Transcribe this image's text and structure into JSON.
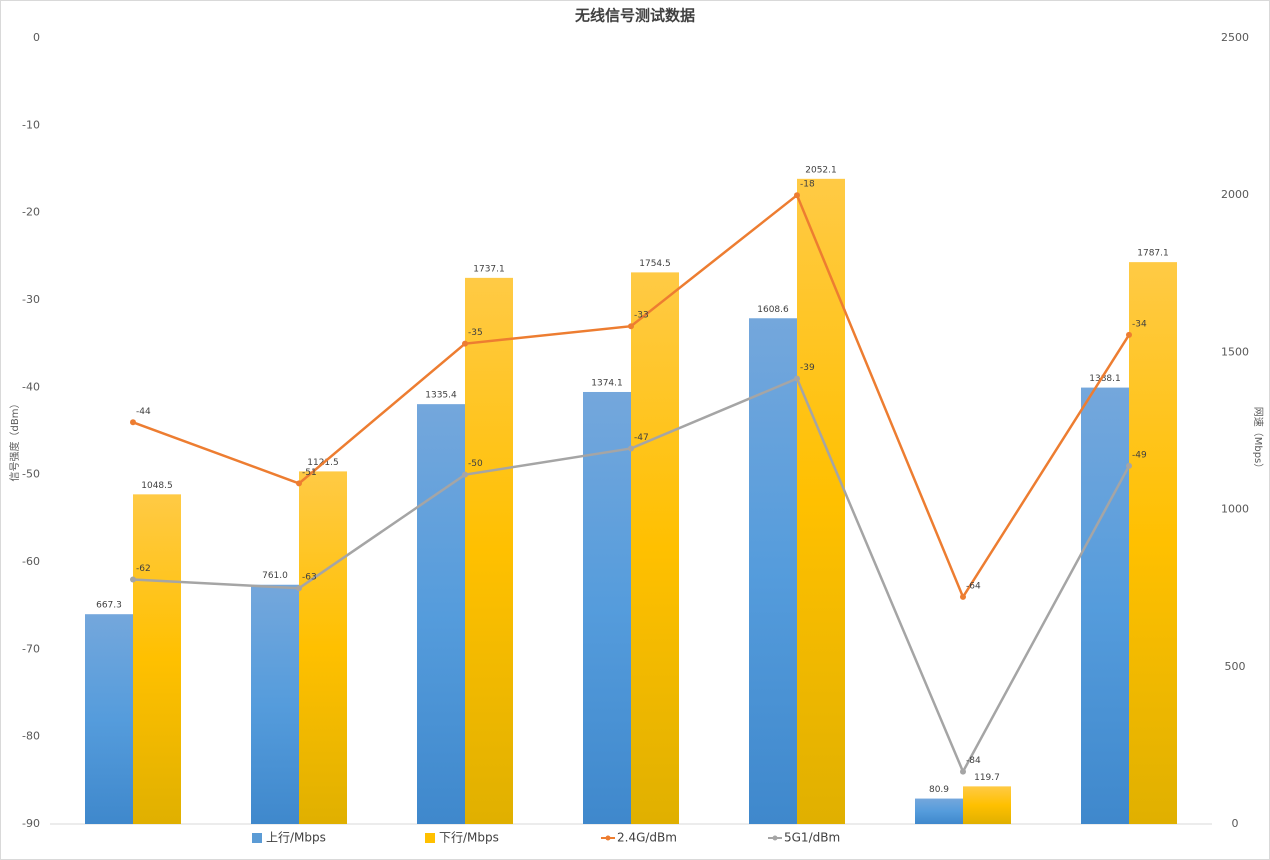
{
  "chart_data": {
    "type": "bar-line",
    "title": "无线信号测试数据",
    "y_label": "信号强度（dBm）",
    "y2_label": "网速（Mbps）",
    "categories": [
      null,
      null,
      null,
      null,
      null,
      null,
      null
    ],
    "ylim": [
      -90,
      0
    ],
    "yticks": [
      -90,
      -80,
      -70,
      -60,
      -50,
      -40,
      -30,
      -20,
      -10,
      0
    ],
    "y2lim": [
      0,
      2500
    ],
    "y2ticks": [
      0,
      500,
      1000,
      1500,
      2000,
      2500
    ],
    "legend": "bottom",
    "series": [
      {
        "name": "上行/Mbps",
        "type": "bar",
        "axis": "y2",
        "color": "#5b9bd5",
        "values": [
          667.3,
          761.0,
          1335.4,
          1374.1,
          1608.6,
          80.9,
          1388.1
        ],
        "value_labels": [
          "667.3",
          "761.0",
          "1335.4",
          "1374.1",
          "1608.6",
          "80.9",
          "1388.1"
        ]
      },
      {
        "name": "下行/Mbps",
        "type": "bar",
        "axis": "y2",
        "color": "#ffc000",
        "values": [
          1048.5,
          1121.5,
          1737.1,
          1754.5,
          2052.1,
          119.7,
          1787.1
        ],
        "value_labels": [
          "1048.5",
          "1121.5",
          "1737.1",
          "1754.5",
          "2052.1",
          "119.7",
          "1787.1"
        ]
      },
      {
        "name": "2.4G/dBm",
        "type": "line",
        "color": "#ed7d31",
        "values": [
          -44,
          -51,
          -35,
          -33,
          -18,
          -64,
          -34
        ]
      },
      {
        "name": "5G1/dBm",
        "type": "line",
        "color": "#a5a5a5",
        "values": [
          -62,
          -63,
          -50,
          -47,
          -39,
          -84,
          -49
        ]
      }
    ]
  }
}
